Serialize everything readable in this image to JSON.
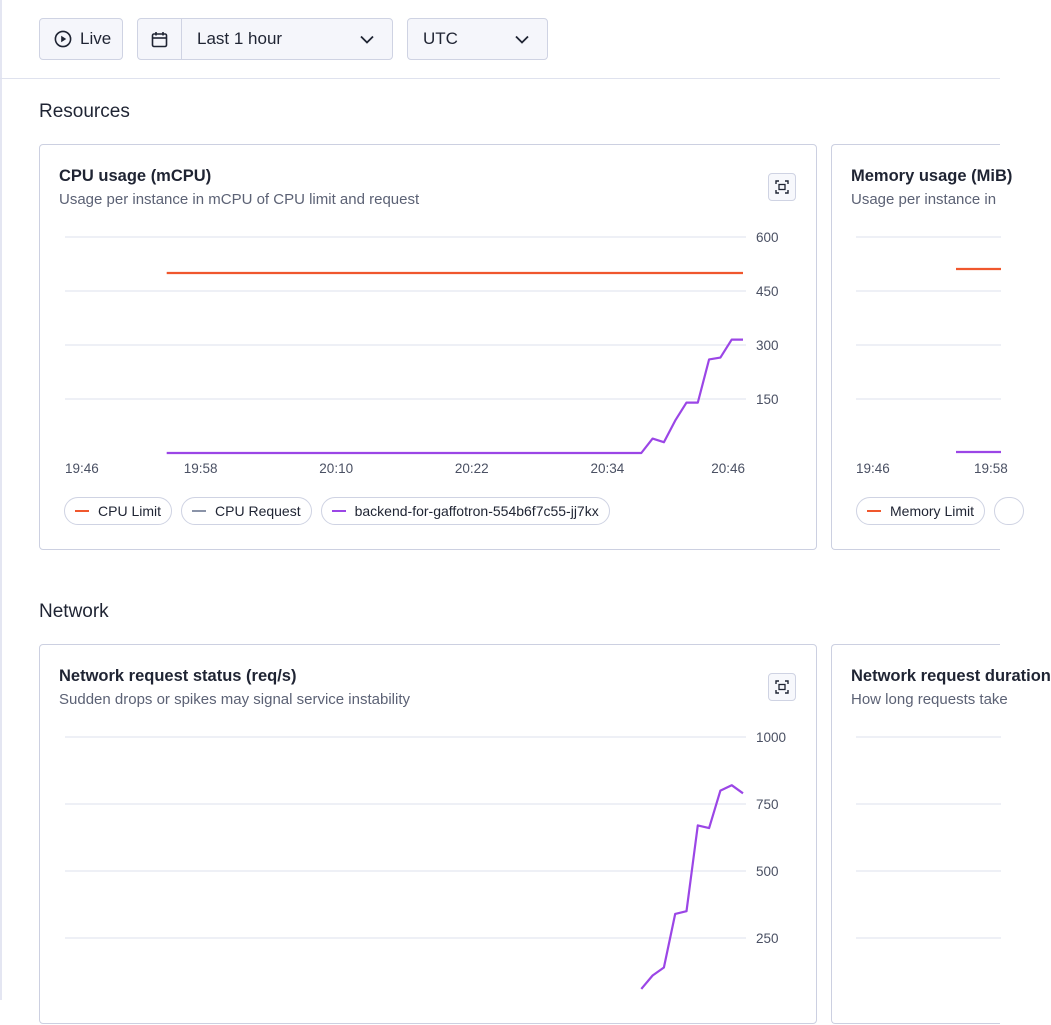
{
  "toolbar": {
    "live_label": "Live",
    "range_label": "Last 1 hour",
    "timezone_label": "UTC"
  },
  "colors": {
    "limit": "#f0572d",
    "request": "#8a93a8",
    "instance": "#9b46e6",
    "grid": "#dde0ec",
    "axis_text": "#4a5063"
  },
  "sections": {
    "resources": "Resources",
    "network": "Network"
  },
  "cpu_card": {
    "title": "CPU usage (mCPU)",
    "subtitle": "Usage per instance in mCPU of CPU limit and request",
    "legend": [
      {
        "label": "CPU Limit",
        "color_key": "limit"
      },
      {
        "label": "CPU Request",
        "color_key": "request"
      },
      {
        "label": "backend-for-gaffotron-554b6f7c55-jj7kx",
        "color_key": "instance"
      }
    ]
  },
  "memory_card": {
    "title": "Memory usage (MiB)",
    "subtitle": "Usage per instance in",
    "x_ticks": [
      "19:46",
      "19:58"
    ],
    "legend": [
      {
        "label": "Memory Limit",
        "color_key": "limit"
      }
    ]
  },
  "network_card": {
    "title": "Network request status (req/s)",
    "subtitle": "Sudden drops or spikes may signal service instability"
  },
  "duration_card": {
    "title": "Network request duration",
    "subtitle": "How long requests take"
  },
  "chart_data": [
    {
      "type": "line",
      "title": "CPU usage (mCPU)",
      "x_ticks": [
        "19:46",
        "19:58",
        "20:10",
        "20:22",
        "20:34",
        "20:46"
      ],
      "y_ticks": [
        150,
        300,
        450,
        600
      ],
      "ylim": [
        0,
        600
      ],
      "y_axis_position": "right",
      "grid": true,
      "legend_position": "bottom-left",
      "series": [
        {
          "name": "CPU Limit",
          "color_key": "limit",
          "x": [
            "19:55",
            "20:46"
          ],
          "y": [
            500,
            500
          ]
        },
        {
          "name": "backend-for-gaffotron-554b6f7c55-jj7kx",
          "color_key": "instance",
          "x": [
            "19:55",
            "20:00",
            "20:10",
            "20:20",
            "20:30",
            "20:37",
            "20:38",
            "20:39",
            "20:40",
            "20:41",
            "20:42",
            "20:43",
            "20:44",
            "20:45",
            "20:46"
          ],
          "y": [
            0,
            0,
            0,
            0,
            0,
            0,
            40,
            30,
            90,
            140,
            140,
            260,
            265,
            315,
            315
          ]
        }
      ]
    },
    {
      "type": "line",
      "title": "Network request status (req/s)",
      "x_ticks": [],
      "y_ticks": [
        250,
        500,
        750,
        1000
      ],
      "ylim": [
        0,
        1000
      ],
      "y_axis_position": "right",
      "grid": true,
      "series": [
        {
          "color_key": "instance",
          "x": [
            "20:37",
            "20:38",
            "20:39",
            "20:40",
            "20:41",
            "20:42",
            "20:43",
            "20:44",
            "20:45",
            "20:46"
          ],
          "y": [
            60,
            110,
            140,
            340,
            350,
            670,
            660,
            800,
            820,
            790
          ]
        }
      ]
    }
  ]
}
